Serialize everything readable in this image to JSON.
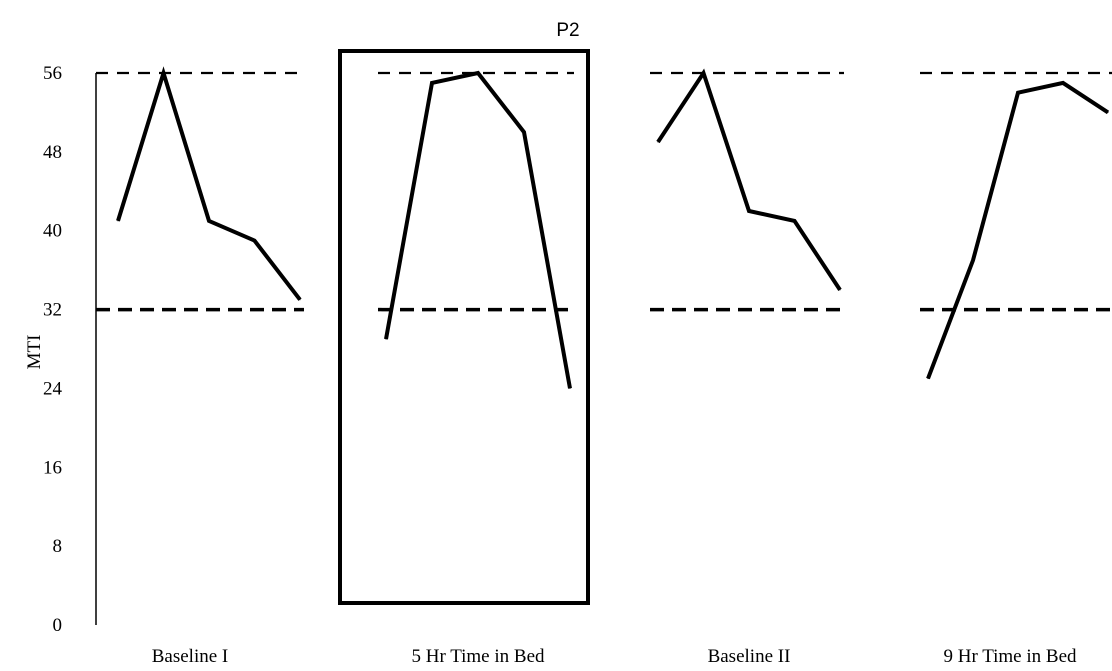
{
  "chart_data": {
    "type": "line",
    "ylabel": "MTI",
    "ylim": [
      0,
      56
    ],
    "yticks": [
      0,
      8,
      16,
      24,
      32,
      40,
      48,
      56
    ],
    "grid": false,
    "highlight": {
      "label": "P2",
      "phase": 1
    },
    "reference_lines": [
      {
        "value": 56,
        "style": "dashed"
      },
      {
        "value": 32,
        "style": "dashed-bold"
      }
    ],
    "phases": [
      {
        "label": "Baseline I",
        "values": [
          41,
          56,
          41,
          39,
          33
        ]
      },
      {
        "label": "5 Hr Time in Bed",
        "values": [
          29,
          55,
          56,
          50,
          24
        ]
      },
      {
        "label": "Baseline II",
        "values": [
          49,
          56,
          42,
          41,
          34
        ]
      },
      {
        "label": "9 Hr Time in Bed",
        "values": [
          25,
          37,
          54,
          55,
          52
        ]
      }
    ]
  }
}
